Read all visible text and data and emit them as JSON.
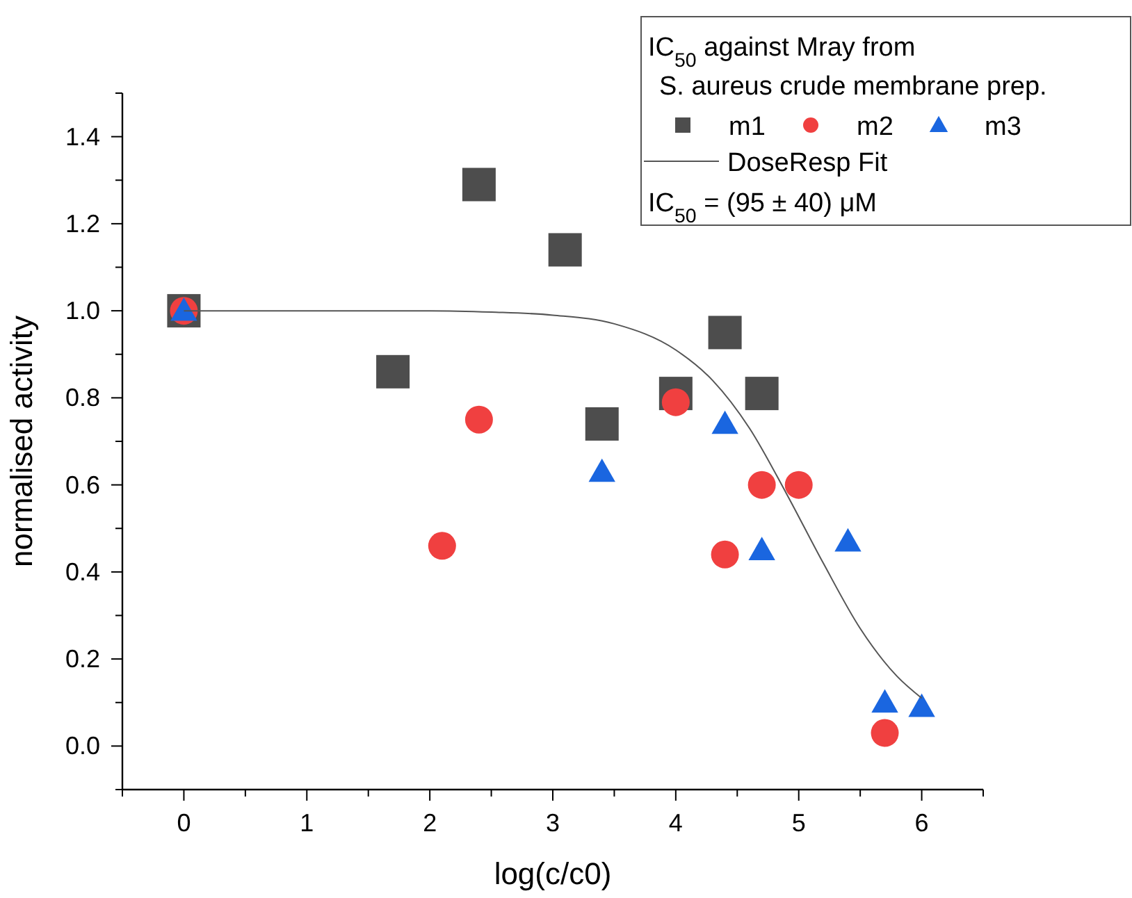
{
  "chart_data": {
    "type": "scatter",
    "xlabel": "log(c/c0)",
    "ylabel": "normalised activity",
    "legend_title": "IC$_{50}$ against Mray from\nS. aureus crude membrane prep.",
    "legend": "top right",
    "annotations": [
      "IC$_{50}$ = (95 ± 40) μM"
    ],
    "xlim": [
      -0.5,
      6.5
    ],
    "xticks": [
      {
        "value": -0.5,
        "label": null
      },
      0,
      {
        "value": 0.5,
        "label": null
      },
      1,
      {
        "value": 1.5,
        "label": null
      },
      2,
      {
        "value": 2.5,
        "label": null
      },
      3,
      {
        "value": 3.5,
        "label": null
      },
      4,
      {
        "value": 4.5,
        "label": null
      },
      5,
      {
        "value": 5.5,
        "label": null
      },
      6,
      {
        "value": 6.5,
        "label": null
      }
    ],
    "ylim": [
      -0.1,
      1.5
    ],
    "yticks": [
      {
        "value": -0.1,
        "label": null
      },
      {
        "value": 0,
        "label": "0.0"
      },
      {
        "value": 0.1,
        "label": null
      },
      {
        "value": 0.2,
        "label": "0.2"
      },
      {
        "value": 0.3,
        "label": null
      },
      {
        "value": 0.4,
        "label": "0.4"
      },
      {
        "value": 0.5,
        "label": null
      },
      {
        "value": 0.6,
        "label": "0.6"
      },
      {
        "value": 0.7,
        "label": null
      },
      {
        "value": 0.8,
        "label": "0.8"
      },
      {
        "value": 0.9,
        "label": null
      },
      {
        "value": 1.0,
        "label": "1.0"
      },
      {
        "value": 1.1,
        "label": null
      },
      {
        "value": 1.2,
        "label": "1.2"
      },
      {
        "value": 1.3,
        "label": null
      },
      {
        "value": 1.4,
        "label": "1.4"
      },
      {
        "value": 1.5,
        "label": null
      }
    ],
    "series": [
      {
        "name": "m1",
        "color": "#4d4d4d",
        "marker": "square",
        "x": [
          0,
          1.7,
          2.4,
          3.1,
          3.4,
          4.0,
          4.4,
          4.7
        ],
        "values": [
          1.0,
          0.86,
          1.29,
          1.14,
          0.74,
          0.81,
          0.95,
          0.81
        ]
      },
      {
        "name": "m2",
        "color": "#f04040",
        "marker": "circle",
        "x": [
          0,
          2.1,
          2.4,
          4.0,
          4.4,
          4.7,
          5.0,
          5.7
        ],
        "values": [
          1.0,
          0.46,
          0.75,
          0.79,
          0.44,
          0.6,
          0.6,
          0.03
        ]
      },
      {
        "name": "m3",
        "color": "#1a66e0",
        "marker": "triangle",
        "x": [
          0,
          3.4,
          4.4,
          4.7,
          5.4,
          5.7,
          6.0
        ],
        "values": [
          1.0,
          0.63,
          0.74,
          0.45,
          0.47,
          0.1,
          0.09
        ]
      },
      {
        "name": "DoseResp Fit",
        "type": "line",
        "color": "#555555",
        "marker": "none",
        "line_style": "solid",
        "x": [
          0,
          1,
          2,
          2.5,
          3,
          3.5,
          4,
          4.3,
          4.6,
          4.9,
          5.2,
          5.5,
          5.8,
          6
        ],
        "values": [
          1.0,
          1.0,
          1.0,
          0.997,
          0.99,
          0.97,
          0.91,
          0.84,
          0.73,
          0.58,
          0.42,
          0.27,
          0.16,
          0.11
        ]
      }
    ]
  }
}
